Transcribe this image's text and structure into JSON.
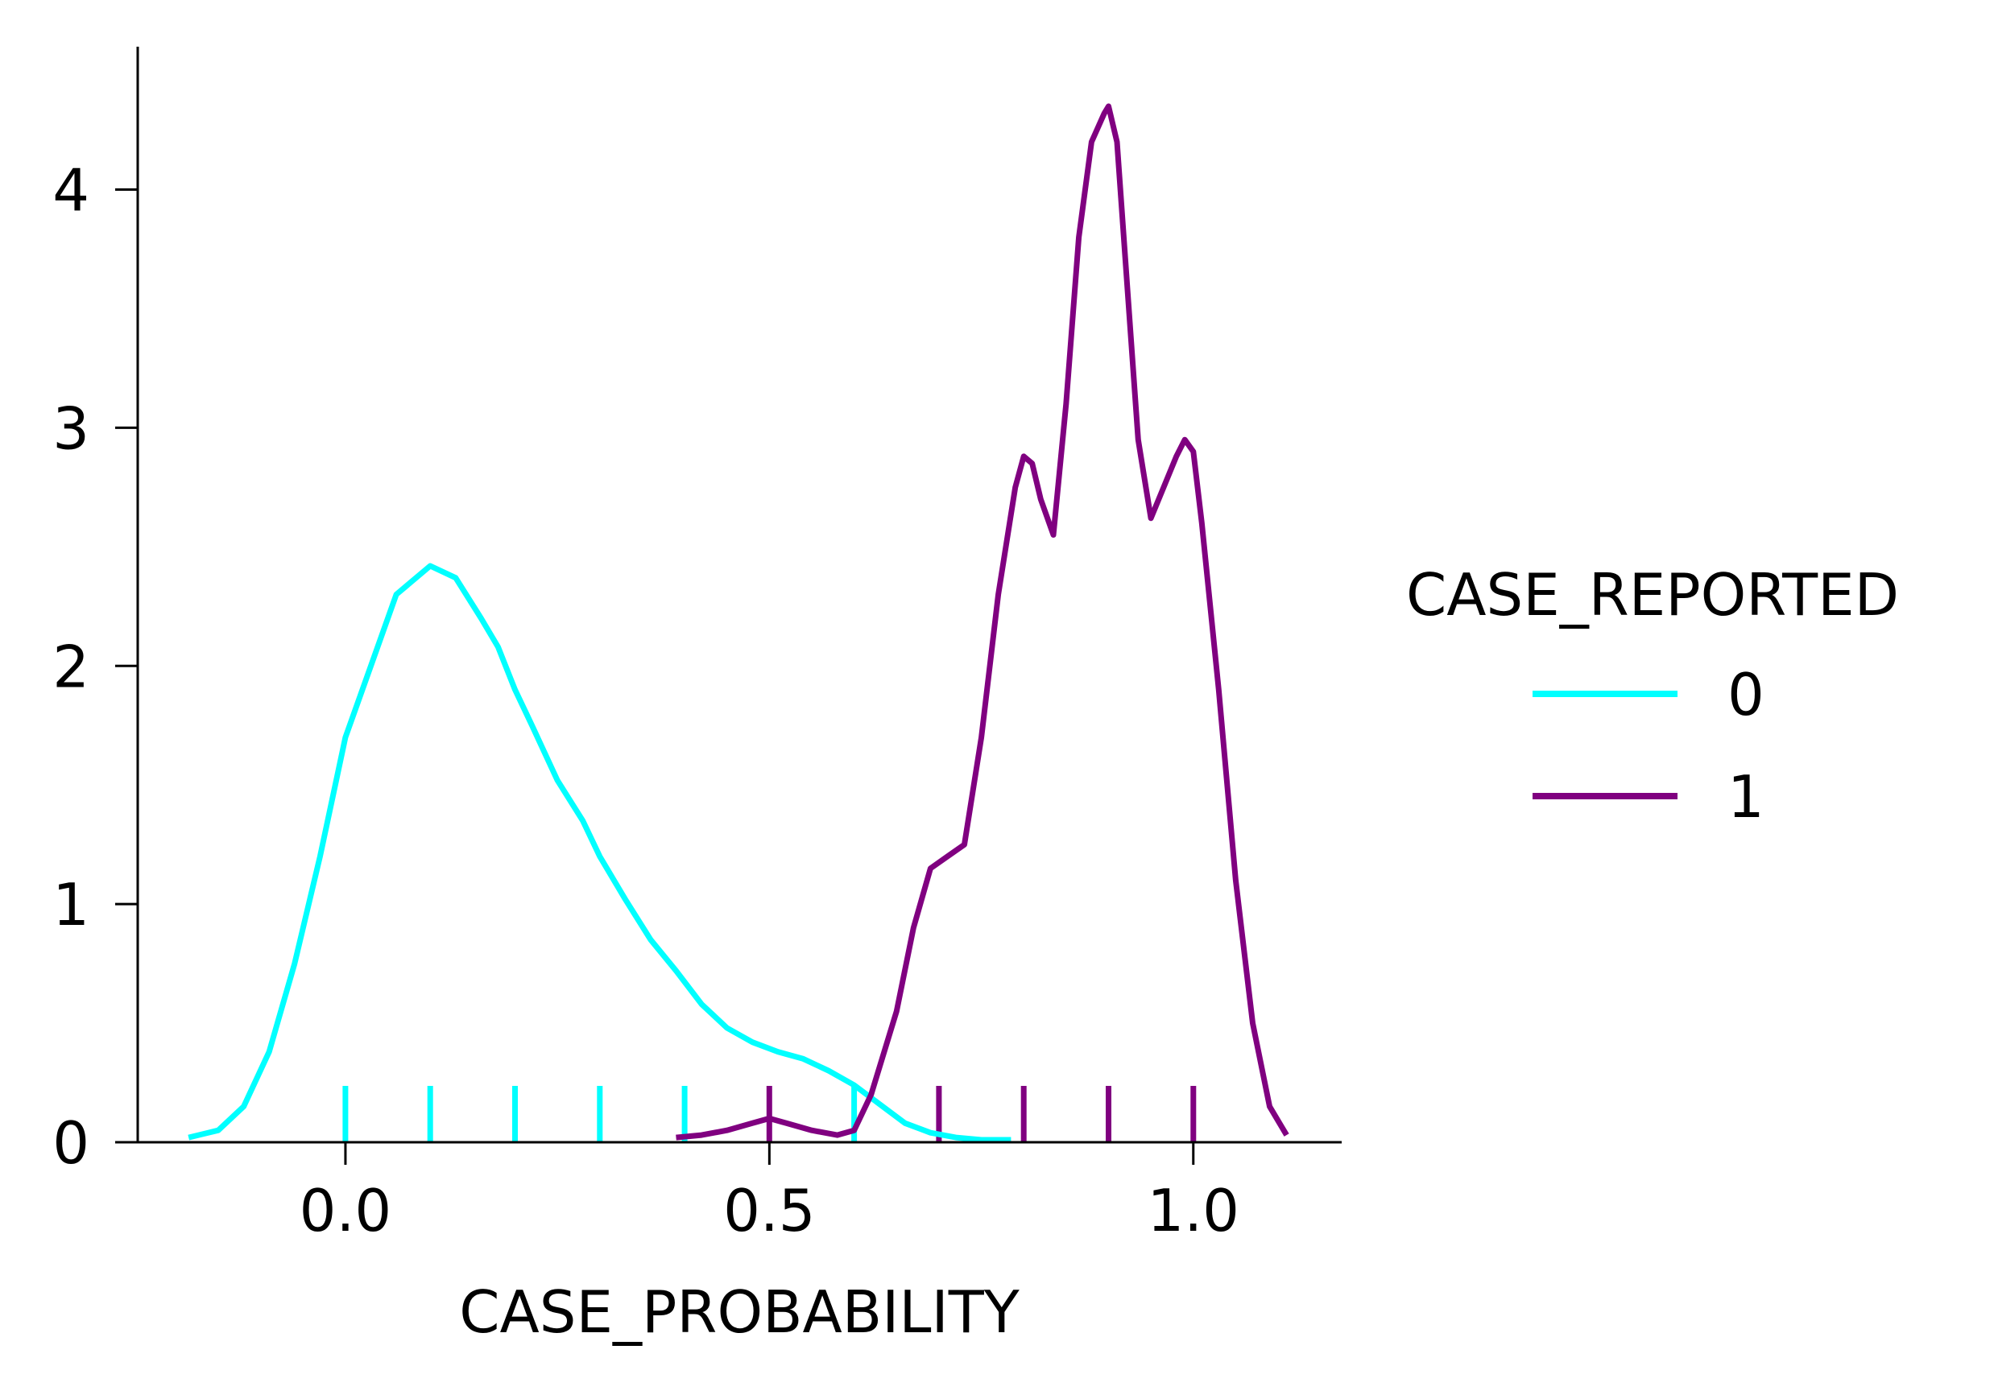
{
  "chart_data": {
    "type": "line",
    "subtype": "kde-with-rug",
    "title": "",
    "xlabel": "CASE_PROBABILITY",
    "ylabel": "",
    "xlim": [
      -0.245,
      1.175
    ],
    "ylim": [
      0,
      4.6
    ],
    "xticks": [
      0.0,
      0.5,
      1.0
    ],
    "xtick_labels": [
      "0.0",
      "0.5",
      "1.0"
    ],
    "yticks": [
      0,
      1,
      2,
      3,
      4
    ],
    "ytick_labels": [
      "0",
      "1",
      "2",
      "3",
      "4"
    ],
    "grid": false,
    "legend": {
      "title": "CASE_REPORTED",
      "placement": "right-outside",
      "entries": [
        "0",
        "1"
      ]
    },
    "series": [
      {
        "name": "0",
        "color": "#00ffff",
        "x": [
          -0.185,
          -0.15,
          -0.12,
          -0.09,
          -0.06,
          -0.03,
          0.0,
          0.03,
          0.06,
          0.1,
          0.13,
          0.16,
          0.18,
          0.2,
          0.22,
          0.25,
          0.28,
          0.3,
          0.33,
          0.36,
          0.39,
          0.42,
          0.45,
          0.48,
          0.51,
          0.54,
          0.57,
          0.6,
          0.63,
          0.66,
          0.69,
          0.72,
          0.75,
          0.785
        ],
        "y": [
          0.02,
          0.05,
          0.15,
          0.38,
          0.75,
          1.2,
          1.7,
          2.0,
          2.3,
          2.42,
          2.37,
          2.2,
          2.08,
          1.9,
          1.75,
          1.52,
          1.35,
          1.2,
          1.02,
          0.85,
          0.72,
          0.58,
          0.48,
          0.42,
          0.38,
          0.35,
          0.3,
          0.24,
          0.16,
          0.08,
          0.04,
          0.02,
          0.01,
          0.01
        ]
      },
      {
        "name": "1",
        "color": "#800080",
        "x": [
          0.39,
          0.42,
          0.45,
          0.48,
          0.5,
          0.52,
          0.55,
          0.58,
          0.6,
          0.62,
          0.65,
          0.67,
          0.69,
          0.71,
          0.73,
          0.75,
          0.77,
          0.79,
          0.8,
          0.81,
          0.82,
          0.835,
          0.85,
          0.865,
          0.88,
          0.895,
          0.9,
          0.91,
          0.92,
          0.935,
          0.95,
          0.965,
          0.98,
          0.99,
          1.0,
          1.01,
          1.03,
          1.05,
          1.07,
          1.09,
          1.11
        ],
        "y": [
          0.02,
          0.03,
          0.05,
          0.08,
          0.1,
          0.08,
          0.05,
          0.03,
          0.05,
          0.2,
          0.55,
          0.9,
          1.15,
          1.2,
          1.25,
          1.7,
          2.3,
          2.75,
          2.88,
          2.85,
          2.7,
          2.55,
          3.1,
          3.8,
          4.2,
          4.32,
          4.35,
          4.2,
          3.7,
          2.95,
          2.62,
          2.75,
          2.88,
          2.95,
          2.9,
          2.6,
          1.9,
          1.1,
          0.5,
          0.15,
          0.03
        ]
      }
    ],
    "rug": [
      {
        "series": "0",
        "x": [
          0.0,
          0.1,
          0.2,
          0.3,
          0.4,
          0.6
        ]
      },
      {
        "series": "1",
        "x": [
          0.5,
          0.7,
          0.8,
          0.9,
          1.0
        ]
      }
    ]
  }
}
